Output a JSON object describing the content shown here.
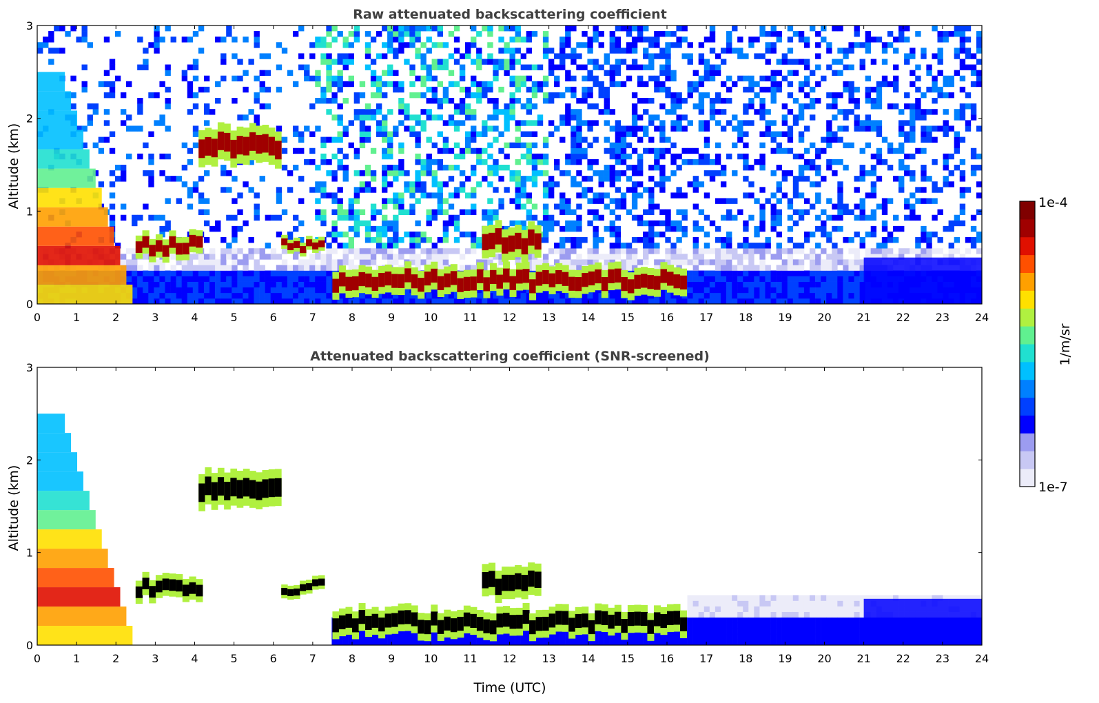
{
  "chart_data": [
    {
      "type": "heatmap",
      "title": "Raw attenuated backscattering coefficient",
      "xlabel": "",
      "ylabel": "Altitude (km)",
      "xlim": [
        0,
        24
      ],
      "ylim": [
        0,
        3
      ],
      "x_ticks": [
        "0",
        "1",
        "2",
        "3",
        "4",
        "5",
        "6",
        "7",
        "8",
        "9",
        "10",
        "11",
        "12",
        "13",
        "14",
        "15",
        "16",
        "17",
        "18",
        "19",
        "20",
        "21",
        "22",
        "23",
        "24"
      ],
      "y_ticks": [
        "0",
        "1",
        "2",
        "3"
      ],
      "grid": false,
      "screened": false,
      "features": [
        {
          "kind": "aerosol",
          "t0": 0.0,
          "t1": 2.5,
          "z0": 0.0,
          "z1": 2.5,
          "peak": 0.6
        },
        {
          "kind": "cloud",
          "t0": 2.5,
          "t1": 4.2,
          "z0": 0.5,
          "z1": 0.75
        },
        {
          "kind": "cloud",
          "t0": 4.1,
          "t1": 6.2,
          "z0": 1.5,
          "z1": 1.9
        },
        {
          "kind": "cloud",
          "t0": 6.2,
          "t1": 7.3,
          "z0": 0.55,
          "z1": 0.7
        },
        {
          "kind": "cloud",
          "t0": 7.5,
          "t1": 16.5,
          "z0": 0.1,
          "z1": 0.4
        },
        {
          "kind": "cloud",
          "t0": 11.3,
          "t1": 12.8,
          "z0": 0.5,
          "z1": 0.85
        },
        {
          "kind": "background",
          "t0": 21.0,
          "t1": 24.0,
          "z0": 0.0,
          "z1": 0.5
        }
      ]
    },
    {
      "type": "heatmap",
      "title": "Attenuated backscattering coefficient (SNR-screened)",
      "xlabel": "Time (UTC)",
      "ylabel": "Altitude (km)",
      "xlim": [
        0,
        24
      ],
      "ylim": [
        0,
        3
      ],
      "x_ticks": [
        "0",
        "1",
        "2",
        "3",
        "4",
        "5",
        "6",
        "7",
        "8",
        "9",
        "10",
        "11",
        "12",
        "13",
        "14",
        "15",
        "16",
        "17",
        "18",
        "19",
        "20",
        "21",
        "22",
        "23",
        "24"
      ],
      "y_ticks": [
        "0",
        "1",
        "2",
        "3"
      ],
      "grid": false,
      "screened": true,
      "features": [
        {
          "kind": "aerosol",
          "t0": 0.0,
          "t1": 2.5,
          "z0": 0.0,
          "z1": 2.5,
          "peak": 0.6
        },
        {
          "kind": "cloud",
          "t0": 2.5,
          "t1": 4.2,
          "z0": 0.5,
          "z1": 0.75
        },
        {
          "kind": "cloud",
          "t0": 4.1,
          "t1": 6.2,
          "z0": 1.5,
          "z1": 1.9
        },
        {
          "kind": "cloud",
          "t0": 6.2,
          "t1": 7.3,
          "z0": 0.55,
          "z1": 0.7
        },
        {
          "kind": "cloud",
          "t0": 7.5,
          "t1": 16.5,
          "z0": 0.1,
          "z1": 0.4
        },
        {
          "kind": "cloud",
          "t0": 11.3,
          "t1": 12.8,
          "z0": 0.5,
          "z1": 0.85
        },
        {
          "kind": "background",
          "t0": 21.0,
          "t1": 24.0,
          "z0": 0.0,
          "z1": 0.5
        }
      ]
    }
  ],
  "colorbar": {
    "label": "1/m/sr",
    "max_label": "1e-4",
    "min_label": "1e-7",
    "colors": [
      "#ececf9",
      "#c8c8f4",
      "#9c9cf0",
      "#0000ff",
      "#0040ff",
      "#0080ff",
      "#00c0ff",
      "#20e0d0",
      "#60f090",
      "#b0f040",
      "#ffe000",
      "#ffa000",
      "#ff5000",
      "#e01000",
      "#a00000",
      "#800000"
    ]
  }
}
